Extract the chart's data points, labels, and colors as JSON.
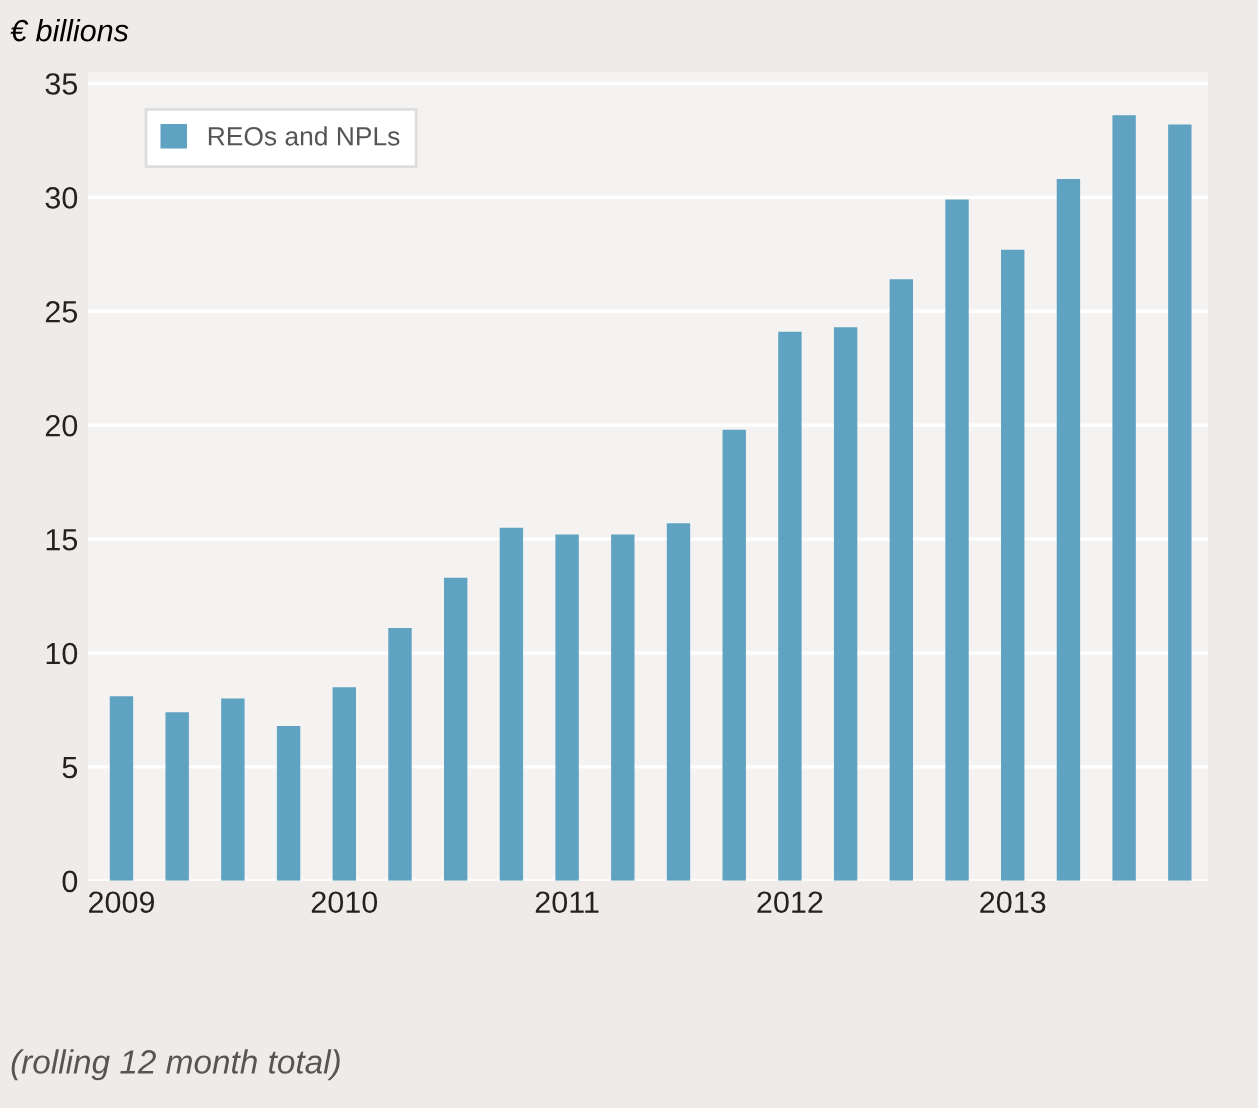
{
  "chart_data": {
    "type": "bar",
    "ylabel": "€ billions",
    "categories": [
      "2009",
      null,
      null,
      null,
      "2010",
      null,
      null,
      null,
      "2011",
      null,
      null,
      null,
      "2012",
      null,
      null,
      null,
      "2013",
      null,
      null,
      null
    ],
    "series": [
      {
        "name": "REOs and NPLs",
        "color": "#5fa2c1",
        "values": [
          8.1,
          7.4,
          8.0,
          6.8,
          8.5,
          11.1,
          13.3,
          15.5,
          15.2,
          15.2,
          15.7,
          19.8,
          24.1,
          24.3,
          26.4,
          29.9,
          27.7,
          30.8,
          33.6,
          33.2
        ]
      }
    ],
    "ylim": [
      0,
      35.5
    ],
    "yticks": [
      0,
      5,
      10,
      15,
      20,
      25,
      30,
      35
    ],
    "grid": "y",
    "legend": "top left",
    "annotations": [
      "(rolling 12 month total)"
    ]
  }
}
